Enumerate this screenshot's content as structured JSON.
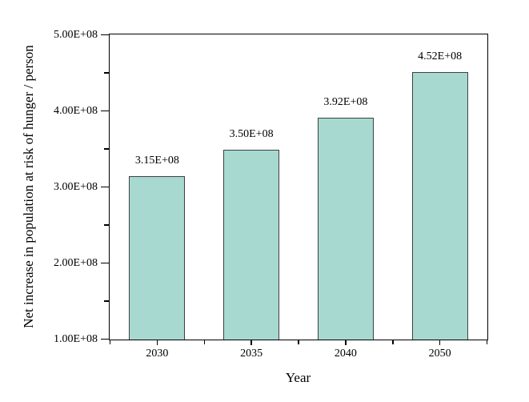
{
  "chart_data": {
    "type": "bar",
    "title": "",
    "xlabel": "Year",
    "ylabel": "Net increase in population at risk of hunger / person",
    "categories": [
      "2030",
      "2035",
      "2040",
      "2050"
    ],
    "values": [
      315000000,
      350000000,
      392000000,
      452000000
    ],
    "bar_labels": [
      "3.15E+08",
      "3.50E+08",
      "3.92E+08",
      "4.52E+08"
    ],
    "ylim": [
      100000000,
      500000000
    ],
    "y_major_ticks": [
      {
        "value": 100000000,
        "label": "1.00E+08"
      },
      {
        "value": 200000000,
        "label": "2.00E+08"
      },
      {
        "value": 300000000,
        "label": "3.00E+08"
      },
      {
        "value": 400000000,
        "label": "4.00E+08"
      },
      {
        "value": 500000000,
        "label": "5.00E+08"
      }
    ],
    "y_minor_tick_values": [
      150000000,
      250000000,
      350000000,
      450000000
    ],
    "grid": false,
    "legend": null,
    "layout_hints": {
      "box_frame": true,
      "ticks_direction": "out",
      "bar_gap_fraction": 0.41
    },
    "colors": {
      "bar_fill": "#a7d9d1",
      "bar_border": "#404040",
      "axis": "#000000",
      "text": "#000000",
      "background": "#ffffff"
    }
  }
}
